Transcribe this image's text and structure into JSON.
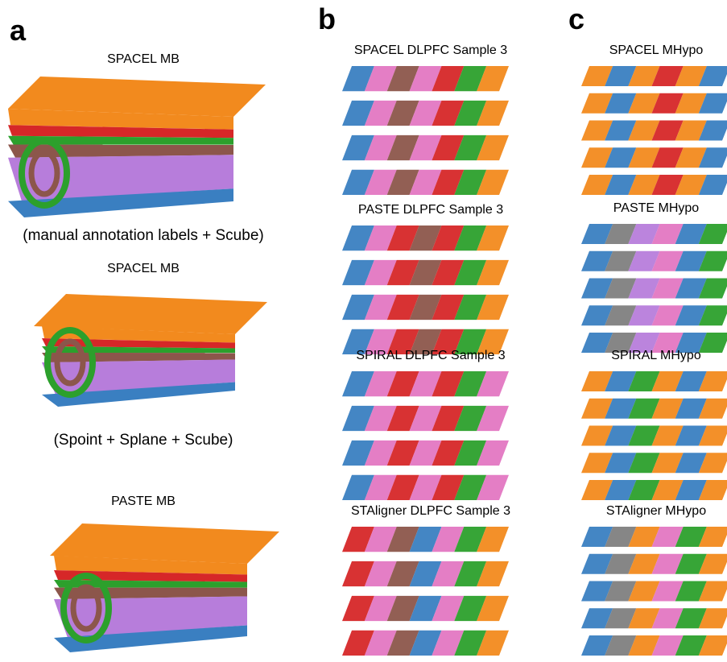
{
  "panels": [
    {
      "label": "a",
      "items": [
        {
          "title": "SPACEL MB",
          "caption": "(manual annotation labels + Scube)"
        },
        {
          "title": "SPACEL MB",
          "caption": "(Spoint + Splane + Scube)"
        },
        {
          "title": "PASTE MB"
        }
      ]
    },
    {
      "label": "b",
      "items": [
        {
          "title": "SPACEL DLPFC Sample 3"
        },
        {
          "title": "PASTE DLPFC Sample 3"
        },
        {
          "title": "SPIRAL DLPFC Sample 3"
        },
        {
          "title": "STAligner DLPFC Sample 3"
        }
      ]
    },
    {
      "label": "c",
      "items": [
        {
          "title": "SPACEL MHypo"
        },
        {
          "title": "PASTE MHypo"
        },
        {
          "title": "SPIRAL MHypo"
        },
        {
          "title": "STAligner MHypo"
        }
      ]
    }
  ]
}
